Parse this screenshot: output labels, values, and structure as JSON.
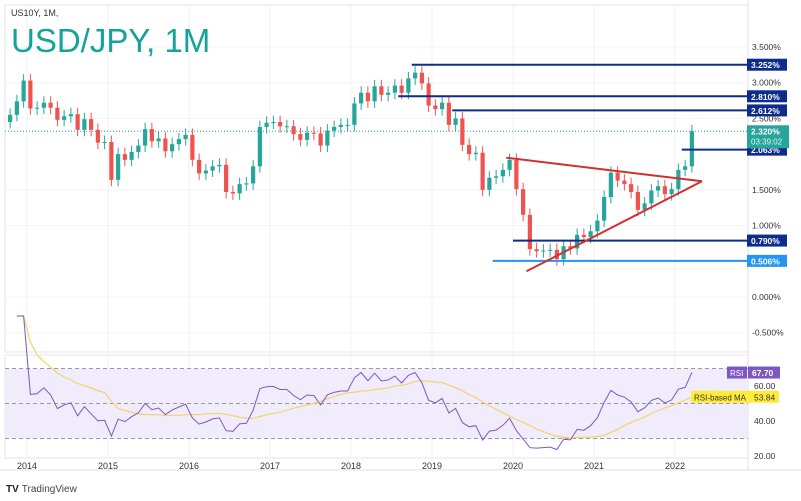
{
  "header": {
    "symbol": "US10Y, 1M,",
    "overlay_title": "USD/JPY, 1M"
  },
  "branding": "TradingView",
  "colors": {
    "up": "#26a69a",
    "down": "#ef5350",
    "level": "#0d2c8c",
    "level_light": "#2196f3",
    "triangle": "#d32f2f",
    "rsi": "#7e57c2",
    "rsi_ma": "#f2d36b",
    "rsi_band": "#f1ecfb",
    "current": "#26a69a"
  },
  "chart_data": {
    "type": "candlestick",
    "interval": "1M",
    "start": "2013-10",
    "close": [
      2.55,
      2.74,
      3.03,
      2.64,
      2.65,
      2.72,
      2.65,
      2.48,
      2.53,
      2.56,
      2.34,
      2.49,
      2.34,
      2.16,
      2.17,
      1.64,
      2.0,
      1.92,
      2.03,
      2.12,
      2.35,
      2.18,
      2.22,
      2.04,
      2.14,
      2.21,
      2.27,
      1.92,
      1.73,
      1.77,
      1.83,
      1.85,
      1.47,
      1.45,
      1.58,
      1.59,
      1.83,
      2.38,
      2.44,
      2.45,
      2.39,
      2.39,
      2.28,
      2.2,
      2.3,
      2.29,
      2.12,
      2.33,
      2.38,
      2.41,
      2.41,
      2.71,
      2.86,
      2.74,
      2.95,
      2.83,
      2.86,
      2.96,
      2.86,
      3.06,
      3.14,
      2.99,
      2.68,
      2.63,
      2.72,
      2.41,
      2.5,
      2.13,
      2.0,
      2.02,
      1.5,
      1.67,
      1.69,
      1.78,
      1.92,
      1.51,
      1.15,
      0.67,
      0.64,
      0.65,
      0.66,
      0.53,
      0.71,
      0.68,
      0.87,
      0.84,
      0.92,
      1.07,
      1.4,
      1.74,
      1.63,
      1.58,
      1.47,
      1.22,
      1.31,
      1.49,
      1.55,
      1.44,
      1.51,
      1.78,
      1.83,
      2.32
    ],
    "price_axis": {
      "ticks": [
        "3.500%",
        "3.000%",
        "2.500%",
        "1.500%",
        "1.000%",
        "0.000%",
        "-0.500%"
      ],
      "values": [
        3.5,
        3.0,
        2.5,
        1.5,
        1.0,
        0.0,
        -0.5
      ],
      "range": [
        -0.8,
        4.1
      ]
    },
    "time_axis": {
      "labels": [
        "2014",
        "2015",
        "2016",
        "2017",
        "2018",
        "2019",
        "2020",
        "2021",
        "2022"
      ]
    },
    "current": {
      "value": 2.32,
      "label": "2.320%",
      "countdown": "03:39:02"
    },
    "levels": [
      {
        "value": 3.252,
        "label": "3.252%",
        "from": "2018-10",
        "style": "dark"
      },
      {
        "value": 2.81,
        "label": "2.810%",
        "from": "2018-08",
        "style": "dark"
      },
      {
        "value": 2.612,
        "label": "2.612%",
        "from": "2019-04",
        "style": "dark"
      },
      {
        "value": 2.063,
        "label": "2.063%",
        "from": "2022-02",
        "style": "dark"
      },
      {
        "value": 0.79,
        "label": "0.790%",
        "from": "2020-01",
        "style": "dark"
      },
      {
        "value": 0.506,
        "label": "0.506%",
        "from": "2019-10",
        "style": "light"
      }
    ],
    "triangle": [
      {
        "from": [
          "2019-12",
          1.95
        ],
        "to": [
          "2022-05",
          1.62
        ]
      },
      {
        "from": [
          "2020-03",
          0.36
        ],
        "to": [
          "2022-05",
          1.62
        ]
      }
    ],
    "rsi": {
      "label": "RSI",
      "value": "67.70",
      "ma_label": "RSI-based MA",
      "ma_value": "53.84",
      "period": 14,
      "ticks": [
        "60.00",
        "40.00",
        "20.00"
      ],
      "tick_values": [
        60,
        40,
        20
      ],
      "bands": [
        70,
        50,
        30
      ]
    }
  }
}
